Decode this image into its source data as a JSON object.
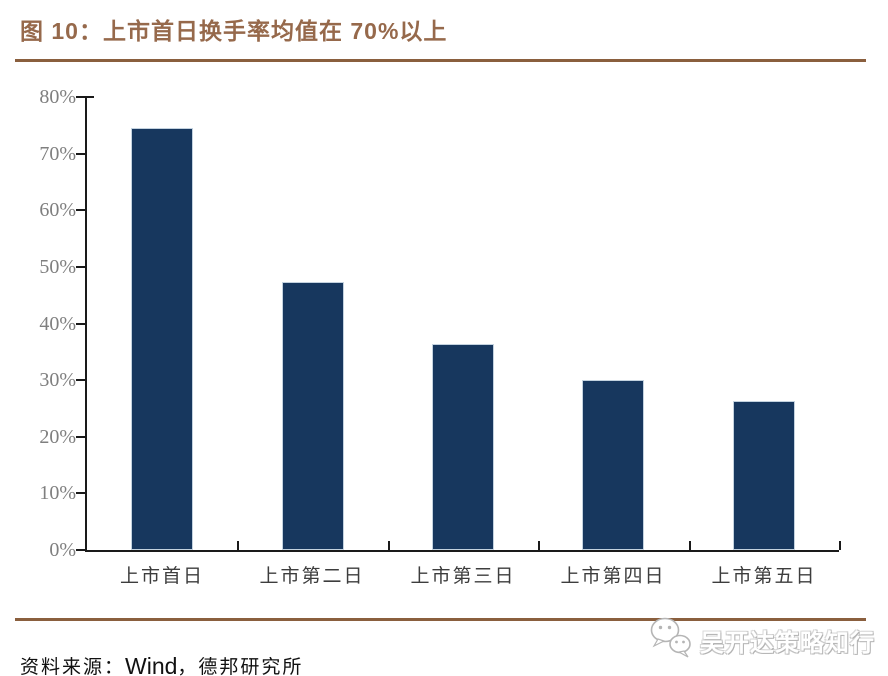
{
  "figure": {
    "title": "图 10：上市首日换手率均值在 70%以上",
    "source": {
      "prefix": "资料来源：",
      "vendor": "Wind",
      "suffix": "，德邦研究所"
    },
    "watermark_text": "吴开达策略知行",
    "watermark_icon": "wechat-bubbles-icon"
  },
  "colors": {
    "title_brown": "#96694B",
    "divider_brown": "#8A5F3E",
    "bar_fill": "#17375E",
    "axis_black": "#1a1a1a",
    "y_label_gray": "#7f7f7f",
    "x_label_dark": "#3d3d3d"
  },
  "chart_data": {
    "type": "bar",
    "title": "上市首日换手率均值在70%以上",
    "categories": [
      "上市首日",
      "上市第二日",
      "上市第三日",
      "上市第四日",
      "上市第五日"
    ],
    "values": [
      74.5,
      47.3,
      36.3,
      30.1,
      26.3
    ],
    "xlabel": "",
    "ylabel": "",
    "ylim": [
      0,
      80
    ],
    "ytick_step": 10,
    "ytick_labels": [
      "0%",
      "10%",
      "20%",
      "30%",
      "40%",
      "50%",
      "60%",
      "70%",
      "80%"
    ],
    "grid": false,
    "legend": null,
    "bar_color": "#17375E"
  }
}
